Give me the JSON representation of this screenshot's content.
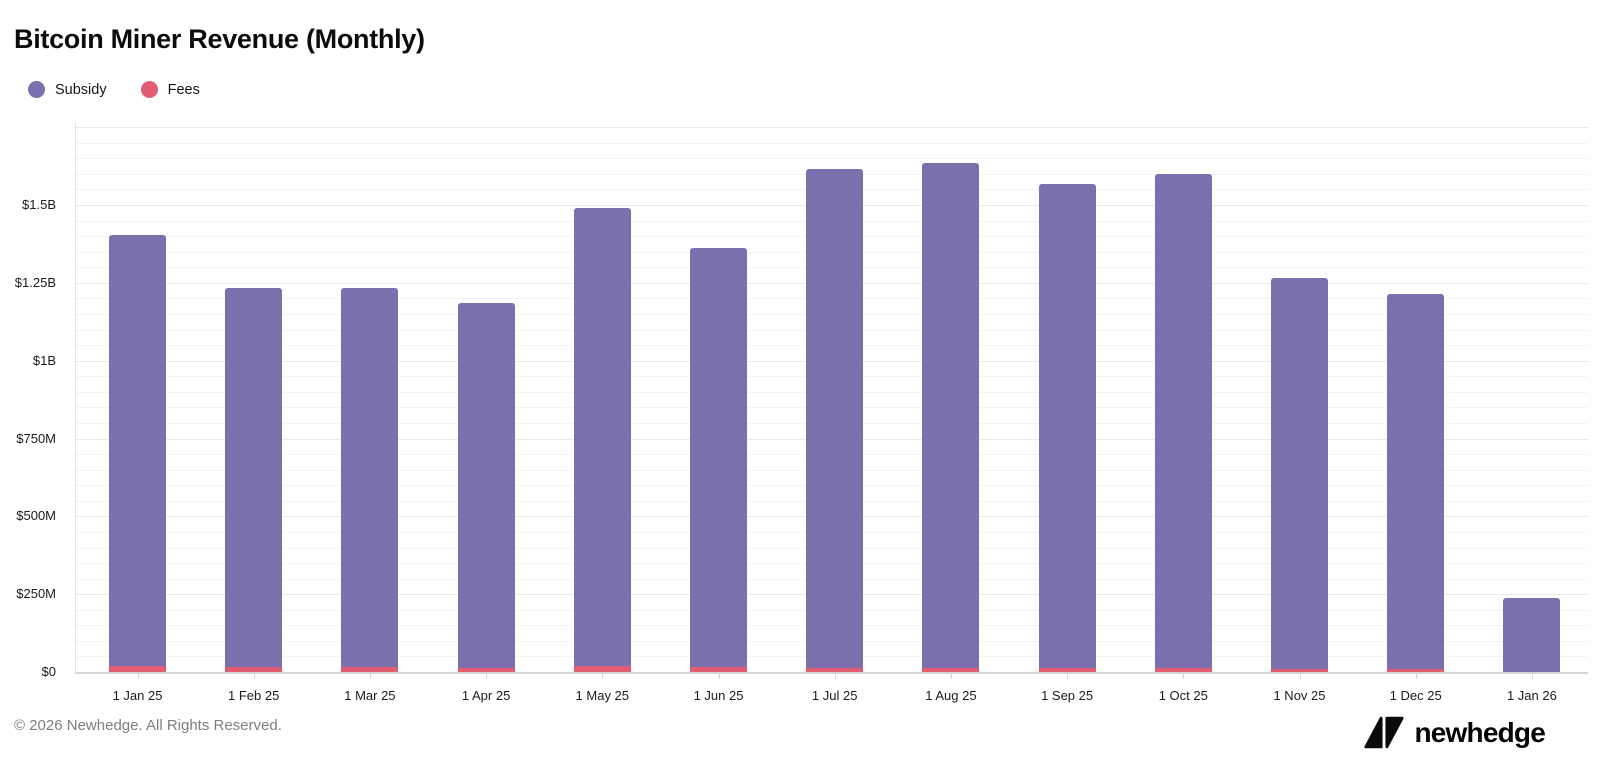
{
  "title": "Bitcoin Miner Revenue (Monthly)",
  "legend": [
    {
      "label": "Subsidy",
      "color": "#7c6fad"
    },
    {
      "label": "Fees",
      "color": "#e25c72"
    }
  ],
  "chart_data": {
    "type": "bar",
    "stacked": true,
    "stack_order_bottom_to_top": [
      "Fees",
      "Subsidy"
    ],
    "title": "Bitcoin Miner Revenue (Monthly)",
    "unit": "USD millions",
    "categories": [
      "1 Jan 25",
      "1 Feb 25",
      "1 Mar 25",
      "1 Apr 25",
      "1 May 25",
      "1 Jun 25",
      "1 Jul 25",
      "1 Aug 25",
      "1 Sep 25",
      "1 Oct 25",
      "1 Nov 25",
      "1 Dec 25",
      "1 Jan 26"
    ],
    "series": [
      {
        "name": "Subsidy",
        "color": "#7c6fad",
        "values": [
          1384,
          1219,
          1217,
          1171,
          1472,
          1346,
          1601,
          1624,
          1556,
          1587,
          1256,
          1206,
          238
        ]
      },
      {
        "name": "Fees",
        "color": "#e25c72",
        "values": [
          20,
          16,
          15,
          14,
          18,
          16,
          14,
          12,
          12,
          12,
          9,
          9,
          1
        ]
      }
    ],
    "totals": [
      1404,
      1235,
      1232,
      1185,
      1490,
      1362,
      1615,
      1636,
      1568,
      1599,
      1265,
      1215,
      239
    ],
    "ytick_values": [
      0,
      250,
      500,
      750,
      1000,
      1250,
      1500
    ],
    "ytick_labels": [
      "$0",
      "$250M",
      "$500M",
      "$750M",
      "$1B",
      "$1.25B",
      "$1.5B"
    ],
    "ylim": [
      0,
      1766
    ],
    "grid": "horizontal minor gridlines every 50M, majors every 250M",
    "legend_position": "top-left"
  },
  "footer": {
    "copyright": "© 2026 Newhedge. All Rights Reserved.",
    "brand": "newhedge"
  }
}
